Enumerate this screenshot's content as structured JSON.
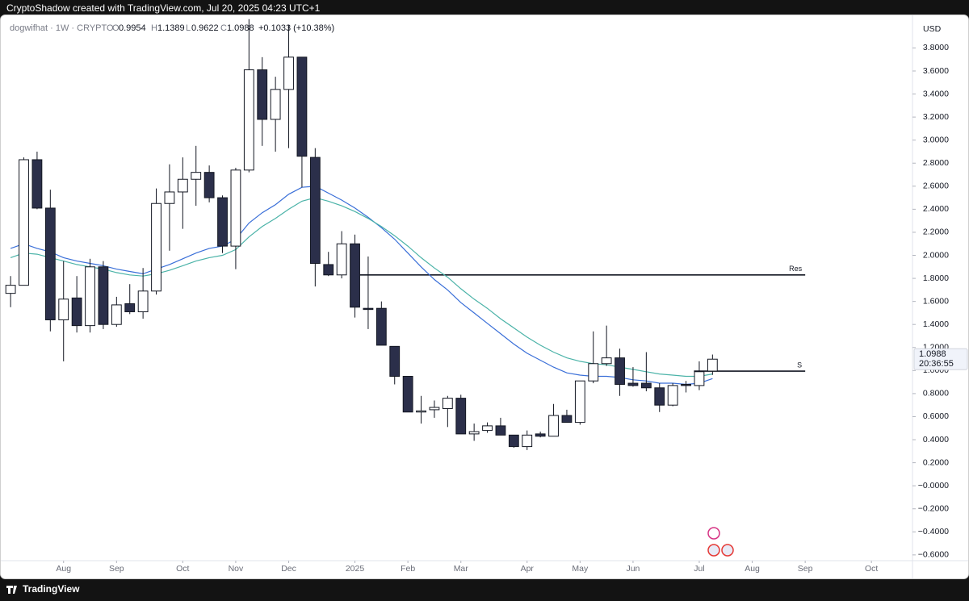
{
  "attribution": "CryptoShadow created with TradingView.com, Jul 20, 2025 04:23 UTC+1",
  "footer_brand": "TradingView",
  "chart_data": {
    "type": "candlestick",
    "symbol": "dogwifhat · 1W · CRYPTO",
    "currency": "USD",
    "legend_labels": [
      "O",
      "H",
      "L",
      "C"
    ],
    "change": "+0.1033 (+10.38%)",
    "countdown": "20:36:55",
    "categories": [
      null,
      null,
      null,
      null,
      null,
      null,
      null,
      null,
      null,
      null,
      null,
      null,
      null,
      null,
      null,
      null,
      null,
      null,
      null,
      null,
      null,
      null,
      null,
      null,
      null,
      null,
      null,
      null,
      null,
      null,
      null,
      null,
      null,
      null,
      null,
      null,
      null,
      null,
      null,
      null,
      null,
      null,
      null,
      null,
      null,
      null,
      null,
      null,
      null,
      null,
      null,
      null,
      null,
      null
    ],
    "open": [
      1.67,
      1.74,
      2.83,
      2.41,
      1.44,
      1.63,
      1.39,
      1.9,
      1.4,
      1.58,
      1.51,
      1.69,
      2.45,
      2.55,
      2.66,
      2.72,
      2.5,
      2.08,
      2.74,
      3.61,
      3.18,
      3.44,
      3.72,
      2.85,
      1.92,
      1.83,
      2.1,
      1.54,
      1.54,
      1.21,
      0.95,
      0.64,
      0.66,
      0.67,
      0.76,
      0.45,
      0.48,
      0.52,
      0.44,
      0.34,
      0.45,
      0.43,
      0.61,
      0.55,
      0.91,
      1.06,
      1.11,
      0.89,
      0.89,
      0.85,
      0.7,
      0.88,
      0.87,
      0.9954
    ],
    "high": [
      1.82,
      2.85,
      2.9,
      2.57,
      1.95,
      1.82,
      1.97,
      1.95,
      1.64,
      1.75,
      1.89,
      2.58,
      2.79,
      2.85,
      2.95,
      2.78,
      2.52,
      2.76,
      4.05,
      3.72,
      3.55,
      4.0,
      3.72,
      2.93,
      2.03,
      2.21,
      2.18,
      1.99,
      1.6,
      1.21,
      0.95,
      0.78,
      0.74,
      0.78,
      0.79,
      0.54,
      0.55,
      0.59,
      0.44,
      0.48,
      0.47,
      0.71,
      0.66,
      0.91,
      1.34,
      1.39,
      1.19,
      1.03,
      1.16,
      0.89,
      0.89,
      0.91,
      1.08,
      1.1389
    ],
    "low": [
      1.55,
      1.74,
      2.4,
      1.34,
      1.08,
      1.33,
      1.33,
      1.36,
      1.38,
      1.49,
      1.45,
      1.66,
      2.04,
      2.23,
      2.43,
      2.46,
      2.02,
      1.88,
      2.72,
      2.95,
      2.9,
      2.93,
      2.59,
      1.73,
      1.82,
      1.8,
      1.46,
      1.36,
      1.22,
      0.88,
      0.64,
      0.54,
      0.59,
      0.51,
      0.45,
      0.39,
      0.46,
      0.44,
      0.33,
      0.31,
      0.42,
      0.43,
      0.55,
      0.53,
      0.89,
      1.04,
      0.78,
      0.86,
      0.82,
      0.64,
      0.69,
      0.81,
      0.83,
      0.9622
    ],
    "close": [
      1.74,
      2.83,
      2.41,
      1.44,
      1.62,
      1.39,
      1.9,
      1.4,
      1.57,
      1.51,
      1.69,
      2.45,
      2.55,
      2.66,
      2.72,
      2.5,
      2.08,
      2.74,
      3.61,
      3.18,
      3.44,
      3.72,
      2.86,
      1.93,
      1.83,
      2.1,
      1.55,
      1.53,
      1.22,
      0.95,
      0.64,
      0.65,
      0.68,
      0.76,
      0.45,
      0.47,
      0.52,
      0.44,
      0.34,
      0.44,
      0.43,
      0.61,
      0.55,
      0.91,
      1.06,
      1.11,
      0.88,
      0.87,
      0.85,
      0.7,
      0.87,
      0.87,
      0.99,
      1.0988
    ],
    "up_color": "#ffffff",
    "down_color": "#2b2f4a",
    "edge_color": "#131722",
    "lines": [
      {
        "color": "#3a6fd8",
        "values": [
          2.06,
          2.1,
          2.06,
          2.03,
          1.98,
          1.95,
          1.93,
          1.91,
          1.88,
          1.86,
          1.84,
          1.88,
          1.92,
          1.97,
          2.02,
          2.06,
          2.08,
          2.14,
          2.28,
          2.37,
          2.44,
          2.53,
          2.59,
          2.6,
          2.54,
          2.48,
          2.41,
          2.33,
          2.24,
          2.14,
          2.02,
          1.9,
          1.79,
          1.7,
          1.59,
          1.5,
          1.41,
          1.32,
          1.23,
          1.15,
          1.09,
          1.03,
          0.98,
          0.96,
          0.95,
          0.95,
          0.94,
          0.92,
          0.91,
          0.89,
          0.89,
          0.88,
          0.89,
          0.93
        ]
      },
      {
        "color": "#4bb3a8",
        "values": [
          1.98,
          2.02,
          2.01,
          1.98,
          1.95,
          1.92,
          1.9,
          1.88,
          1.85,
          1.83,
          1.82,
          1.84,
          1.87,
          1.91,
          1.95,
          1.98,
          2.0,
          2.05,
          2.16,
          2.25,
          2.32,
          2.4,
          2.47,
          2.5,
          2.47,
          2.43,
          2.38,
          2.32,
          2.25,
          2.17,
          2.08,
          1.98,
          1.89,
          1.81,
          1.71,
          1.62,
          1.54,
          1.45,
          1.37,
          1.29,
          1.22,
          1.16,
          1.11,
          1.08,
          1.06,
          1.05,
          1.03,
          1.01,
          0.99,
          0.97,
          0.96,
          0.95,
          0.95,
          0.97
        ]
      }
    ],
    "levels": [
      {
        "label": "Res",
        "value": 1.83,
        "from": 26,
        "to": 60
      },
      {
        "label": "S",
        "value": 0.995,
        "from": 51.6,
        "to": 60
      }
    ],
    "xlim": [
      -0.8,
      68.1
    ],
    "xticks": [
      {
        "value": 4,
        "label": "Aug"
      },
      {
        "value": 8,
        "label": "Sep"
      },
      {
        "value": 13,
        "label": "Oct"
      },
      {
        "value": 17,
        "label": "Nov"
      },
      {
        "value": 21,
        "label": "Dec"
      },
      {
        "value": 26,
        "label": "2025"
      },
      {
        "value": 30,
        "label": "Feb"
      },
      {
        "value": 34,
        "label": "Mar"
      },
      {
        "value": 39,
        "label": "Apr"
      },
      {
        "value": 43,
        "label": "May"
      },
      {
        "value": 47,
        "label": "Jun"
      },
      {
        "value": 52,
        "label": "Jul"
      },
      {
        "value": 56,
        "label": "Aug"
      },
      {
        "value": 60,
        "label": "Sep"
      },
      {
        "value": 65,
        "label": "Oct"
      }
    ],
    "ylim": [
      -0.65,
      4.09
    ],
    "yticks": [
      {
        "value": 3.8,
        "label": "3.8000"
      },
      {
        "value": 3.6,
        "label": "3.6000"
      },
      {
        "value": 3.4,
        "label": "3.4000"
      },
      {
        "value": 3.2,
        "label": "3.2000"
      },
      {
        "value": 3.0,
        "label": "3.0000"
      },
      {
        "value": 2.8,
        "label": "2.8000"
      },
      {
        "value": 2.6,
        "label": "2.6000"
      },
      {
        "value": 2.4,
        "label": "2.4000"
      },
      {
        "value": 2.2,
        "label": "2.2000"
      },
      {
        "value": 2.0,
        "label": "2.0000"
      },
      {
        "value": 1.8,
        "label": "1.8000"
      },
      {
        "value": 1.6,
        "label": "1.6000"
      },
      {
        "value": 1.4,
        "label": "1.4000"
      },
      {
        "value": 1.2,
        "label": "1.2000"
      },
      {
        "value": 1.0,
        "label": "1.0000"
      },
      {
        "value": 0.8,
        "label": "0.8000"
      },
      {
        "value": 0.6,
        "label": "0.6000"
      },
      {
        "value": 0.4,
        "label": "0.4000"
      },
      {
        "value": 0.2,
        "label": "0.2000"
      },
      {
        "value": 0,
        "label": "−0.0000"
      },
      {
        "value": -0.2,
        "label": "−0.2000"
      },
      {
        "value": -0.4,
        "label": "−0.4000"
      },
      {
        "value": -0.6,
        "label": "−0.6000"
      }
    ],
    "grid": false
  }
}
